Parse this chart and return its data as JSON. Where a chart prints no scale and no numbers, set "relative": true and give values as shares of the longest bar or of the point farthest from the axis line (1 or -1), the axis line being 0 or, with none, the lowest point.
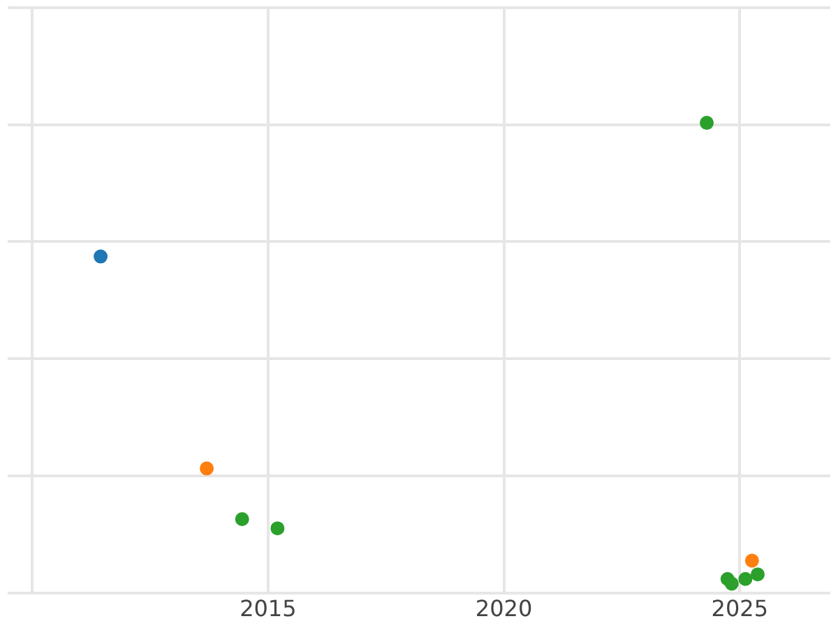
{
  "chart_data": {
    "type": "scatter",
    "relative": true,
    "grid": true,
    "legend": false,
    "marker": "circle",
    "xlim": [
      2009.48,
      2026.92
    ],
    "xticks": [
      {
        "value": 2010,
        "label": null
      },
      2015,
      2020,
      2025
    ],
    "series": [
      {
        "color": "#1f77b4",
        "x": [
          2011.45
        ],
        "values": [
          0.71
        ]
      },
      {
        "color": "#ff7f0e",
        "x": [
          2013.7,
          2025.26
        ],
        "values": [
          0.25,
          0.05
        ]
      },
      {
        "color": "#2ca02c",
        "x": [
          2014.45,
          2015.2,
          2024.3,
          2024.74,
          2024.83,
          2025.12,
          2025.38
        ],
        "values": [
          0.14,
          0.12,
          1,
          0.01,
          0,
          0.01,
          0.02
        ]
      }
    ]
  }
}
